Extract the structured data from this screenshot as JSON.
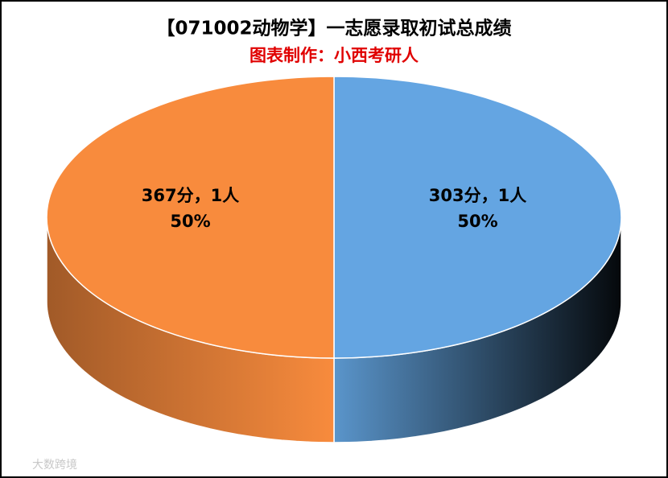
{
  "chart_data": {
    "type": "pie3d",
    "title": "【071002动物学】一志愿录取初试总成绩",
    "subtitle": "图表制作：小西考研人",
    "categories": [
      "303分，1人",
      "367分，1人"
    ],
    "values": [
      50,
      50
    ],
    "value_labels": [
      "50%",
      "50%"
    ],
    "colors": [
      "#64a5e2",
      "#f88b3d"
    ],
    "watermark": "大数跨境"
  }
}
